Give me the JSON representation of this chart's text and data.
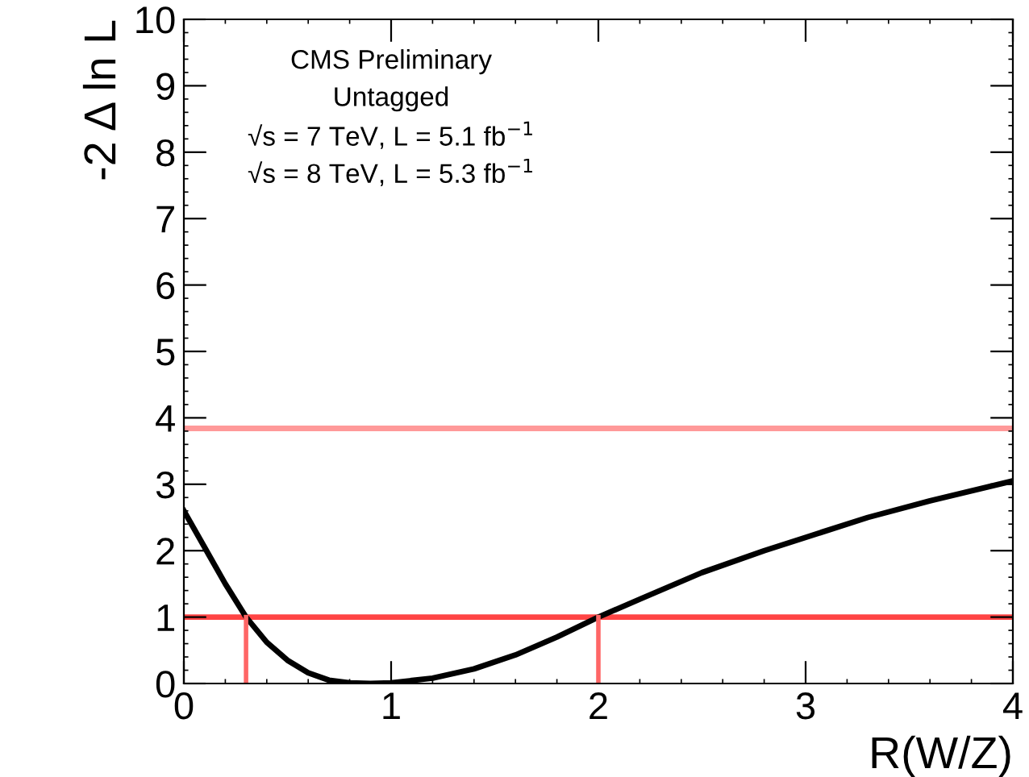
{
  "chart_data": {
    "type": "line",
    "xlabel": "R(W/Z)",
    "ylabel": "-2 Δ ln L",
    "annotations": [
      "CMS Preliminary",
      "Untagged",
      "√s = 7 TeV, L = 5.1 fb$^{−1}$",
      "√s = 8 TeV, L = 5.3 fb$^{−1}$"
    ],
    "xlim": [
      0,
      4
    ],
    "ylim": [
      0,
      10
    ],
    "xticks": [
      0,
      1,
      2,
      3,
      4
    ],
    "yticks": [
      0,
      1,
      2,
      3,
      4,
      5,
      6,
      7,
      8,
      9,
      10
    ],
    "grid": false,
    "legend": false,
    "series": [
      {
        "color": "#000000",
        "x": [
          0,
          0.1,
          0.2,
          0.3,
          0.4,
          0.5,
          0.6,
          0.7,
          0.8,
          0.9,
          1.0,
          1.2,
          1.4,
          1.6,
          1.8,
          2.0,
          2.2,
          2.5,
          2.8,
          3.0,
          3.3,
          3.6,
          4.0
        ],
        "values": [
          2.6,
          2.05,
          1.5,
          1.0,
          0.62,
          0.35,
          0.16,
          0.05,
          0.01,
          0,
          0.01,
          0.08,
          0.22,
          0.43,
          0.7,
          1.0,
          1.27,
          1.67,
          2.0,
          2.2,
          2.5,
          2.75,
          3.05
        ]
      },
      {
        "color": "#ff6666",
        "x": [
          0.3,
          0.3
        ],
        "values": [
          0,
          1
        ]
      },
      {
        "color": "#ff6666",
        "x": [
          2.0,
          2.0
        ],
        "values": [
          0,
          1
        ]
      }
    ],
    "ref_lines": [
      {
        "axis": "y",
        "value": 1,
        "color": "#ff4444"
      },
      {
        "axis": "y",
        "value": 3.84,
        "color": "#ff9999"
      }
    ]
  }
}
